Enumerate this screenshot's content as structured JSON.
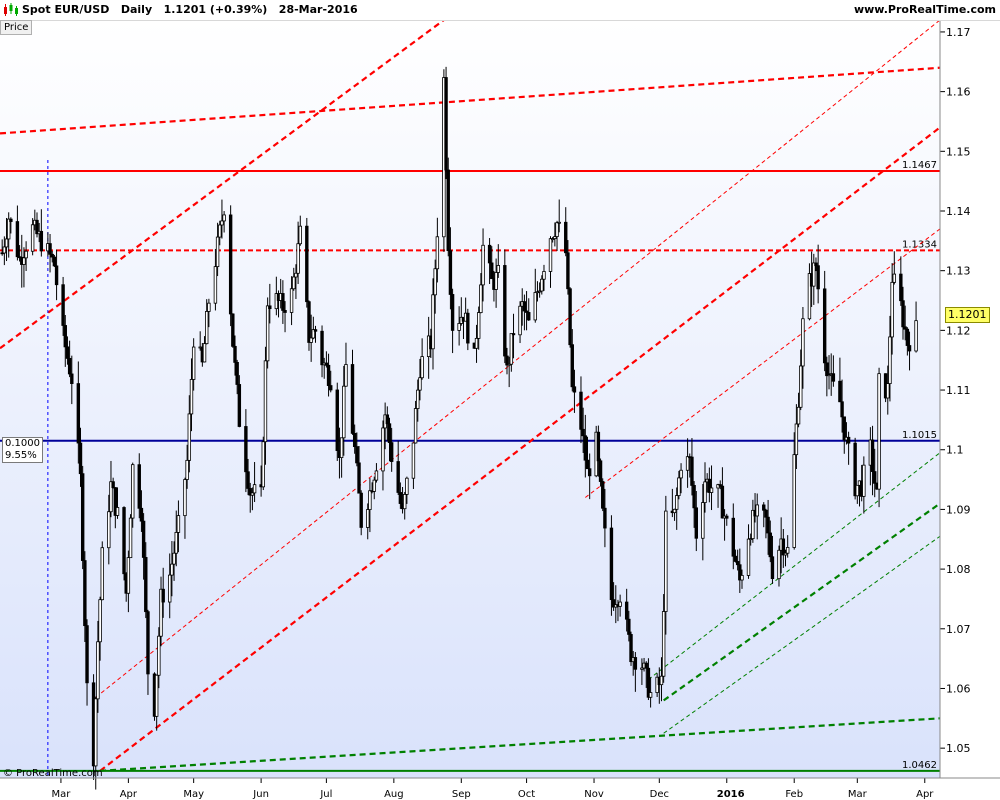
{
  "header": {
    "title": "Spot EUR/USD   Daily   1.1201 (+0.39%)   28-Mar-2016",
    "site": "www.ProRealTime.com",
    "price_tab": "Price"
  },
  "footer": {
    "copyright": "© ProRealTime.com"
  },
  "fib_box": {
    "level": "0.1000",
    "pct": "9.55%"
  },
  "last_price": "1.1201",
  "colors": {
    "background_top": "#ffffff",
    "background_bottom": "#d9e2fb",
    "resistance": "#ff0000",
    "support_blue": "#000099",
    "support_green": "#008000",
    "candle": "#000000"
  },
  "chart_data": {
    "type": "candlestick",
    "title": "Spot EUR/USD Daily",
    "ylim": [
      1.045,
      1.172
    ],
    "y_ticks": [
      1.05,
      1.06,
      1.07,
      1.08,
      1.09,
      1.1,
      1.11,
      1.12,
      1.13,
      1.14,
      1.15,
      1.16,
      1.17
    ],
    "y_tick_labels": [
      "1.05",
      "1.06",
      "1.07",
      "1.08",
      "1.09",
      "1.1",
      "1.11",
      "1.12",
      "1.13",
      "1.14",
      "1.15",
      "1.16",
      "1.17"
    ],
    "x_ticks": [
      {
        "label": "Mar",
        "date": "2015-03-01"
      },
      {
        "label": "Apr",
        "date": "2015-04-01"
      },
      {
        "label": "May",
        "date": "2015-05-01"
      },
      {
        "label": "Jun",
        "date": "2015-06-01"
      },
      {
        "label": "Jul",
        "date": "2015-07-01"
      },
      {
        "label": "Aug",
        "date": "2015-08-01"
      },
      {
        "label": "Sep",
        "date": "2015-09-01"
      },
      {
        "label": "Oct",
        "date": "2015-10-01"
      },
      {
        "label": "Nov",
        "date": "2015-11-01"
      },
      {
        "label": "Dec",
        "date": "2015-12-01"
      },
      {
        "label": "2016",
        "date": "2016-01-01",
        "bold": true
      },
      {
        "label": "Feb",
        "date": "2016-02-01"
      },
      {
        "label": "Mar",
        "date": "2016-03-01"
      },
      {
        "label": "Apr",
        "date": "2016-04-01"
      }
    ],
    "xlim": [
      "2015-02-01",
      "2016-04-08"
    ],
    "close_path": [
      [
        "2015-02-02",
        1.133
      ],
      [
        "2015-02-05",
        1.139
      ],
      [
        "2015-02-10",
        1.132
      ],
      [
        "2015-02-16",
        1.137
      ],
      [
        "2015-02-20",
        1.135
      ],
      [
        "2015-02-26",
        1.131
      ],
      [
        "2015-03-02",
        1.119
      ],
      [
        "2015-03-06",
        1.112
      ],
      [
        "2015-03-10",
        1.095
      ],
      [
        "2015-03-13",
        1.06
      ],
      [
        "2015-03-16",
        1.049
      ],
      [
        "2015-03-18",
        1.068
      ],
      [
        "2015-03-20",
        1.082
      ],
      [
        "2015-03-24",
        1.094
      ],
      [
        "2015-03-27",
        1.089
      ],
      [
        "2015-03-31",
        1.076
      ],
      [
        "2015-04-03",
        1.097
      ],
      [
        "2015-04-07",
        1.09
      ],
      [
        "2015-04-10",
        1.063
      ],
      [
        "2015-04-13",
        1.057
      ],
      [
        "2015-04-16",
        1.075
      ],
      [
        "2015-04-20",
        1.079
      ],
      [
        "2015-04-24",
        1.087
      ],
      [
        "2015-04-28",
        1.098
      ],
      [
        "2015-05-01",
        1.119
      ],
      [
        "2015-05-05",
        1.114
      ],
      [
        "2015-05-08",
        1.125
      ],
      [
        "2015-05-12",
        1.134
      ],
      [
        "2015-05-15",
        1.141
      ],
      [
        "2015-05-19",
        1.118
      ],
      [
        "2015-05-22",
        1.105
      ],
      [
        "2015-05-27",
        1.093
      ],
      [
        "2015-06-01",
        1.092
      ],
      [
        "2015-06-04",
        1.125
      ],
      [
        "2015-06-08",
        1.125
      ],
      [
        "2015-06-11",
        1.124
      ],
      [
        "2015-06-15",
        1.126
      ],
      [
        "2015-06-19",
        1.136
      ],
      [
        "2015-06-23",
        1.119
      ],
      [
        "2015-06-26",
        1.12
      ],
      [
        "2015-06-29",
        1.115
      ],
      [
        "2015-07-03",
        1.112
      ],
      [
        "2015-07-07",
        1.098
      ],
      [
        "2015-07-10",
        1.114
      ],
      [
        "2015-07-14",
        1.1
      ],
      [
        "2015-07-17",
        1.088
      ],
      [
        "2015-07-21",
        1.093
      ],
      [
        "2015-07-24",
        1.098
      ],
      [
        "2015-07-28",
        1.106
      ],
      [
        "2015-07-31",
        1.099
      ],
      [
        "2015-08-05",
        1.089
      ],
      [
        "2015-08-10",
        1.102
      ],
      [
        "2015-08-13",
        1.114
      ],
      [
        "2015-08-18",
        1.118
      ],
      [
        "2015-08-21",
        1.137
      ],
      [
        "2015-08-24",
        1.162
      ],
      [
        "2015-08-26",
        1.135
      ],
      [
        "2015-08-28",
        1.121
      ],
      [
        "2015-09-02",
        1.123
      ],
      [
        "2015-09-07",
        1.115
      ],
      [
        "2015-09-11",
        1.134
      ],
      [
        "2015-09-15",
        1.128
      ],
      [
        "2015-09-18",
        1.129
      ],
      [
        "2015-09-22",
        1.113
      ],
      [
        "2015-09-25",
        1.12
      ],
      [
        "2015-09-29",
        1.124
      ],
      [
        "2015-10-02",
        1.121
      ],
      [
        "2015-10-07",
        1.128
      ],
      [
        "2015-10-12",
        1.136
      ],
      [
        "2015-10-15",
        1.138
      ],
      [
        "2015-10-19",
        1.133
      ],
      [
        "2015-10-22",
        1.11
      ],
      [
        "2015-10-26",
        1.104
      ],
      [
        "2015-10-29",
        1.096
      ],
      [
        "2015-11-02",
        1.101
      ],
      [
        "2015-11-05",
        1.089
      ],
      [
        "2015-11-09",
        1.075
      ],
      [
        "2015-11-13",
        1.076
      ],
      [
        "2015-11-18",
        1.066
      ],
      [
        "2015-11-23",
        1.064
      ],
      [
        "2015-11-27",
        1.059
      ],
      [
        "2015-12-02",
        1.061
      ],
      [
        "2015-12-04",
        1.088
      ],
      [
        "2015-12-08",
        1.089
      ],
      [
        "2015-12-11",
        1.098
      ],
      [
        "2015-12-15",
        1.098
      ],
      [
        "2015-12-18",
        1.086
      ],
      [
        "2015-12-22",
        1.095
      ],
      [
        "2015-12-29",
        1.092
      ],
      [
        "2016-01-04",
        1.083
      ],
      [
        "2016-01-07",
        1.078
      ],
      [
        "2016-01-11",
        1.086
      ],
      [
        "2016-01-14",
        1.089
      ],
      [
        "2016-01-19",
        1.088
      ],
      [
        "2016-01-22",
        1.08
      ],
      [
        "2016-01-26",
        1.085
      ],
      [
        "2016-01-29",
        1.083
      ],
      [
        "2016-02-03",
        1.109
      ],
      [
        "2016-02-05",
        1.121
      ],
      [
        "2016-02-08",
        1.128
      ],
      [
        "2016-02-11",
        1.131
      ],
      [
        "2016-02-15",
        1.116
      ],
      [
        "2016-02-18",
        1.111
      ],
      [
        "2016-02-22",
        1.108
      ],
      [
        "2016-02-25",
        1.101
      ],
      [
        "2016-02-29",
        1.094
      ],
      [
        "2016-03-03",
        1.094
      ],
      [
        "2016-03-07",
        1.1
      ],
      [
        "2016-03-10",
        1.092
      ],
      [
        "2016-03-11",
        1.111
      ],
      [
        "2016-03-15",
        1.11
      ],
      [
        "2016-03-17",
        1.129
      ],
      [
        "2016-03-21",
        1.124
      ],
      [
        "2016-03-24",
        1.118
      ],
      [
        "2016-03-28",
        1.12
      ]
    ],
    "horizontal_lines": [
      {
        "value": 1.1467,
        "label": "1.1467",
        "color": "#ff0000",
        "style": "solid"
      },
      {
        "value": 1.1334,
        "label": "1.1334",
        "color": "#ff0000",
        "style": "dashed"
      },
      {
        "value": 1.1015,
        "label": "1.1015",
        "color": "#000099",
        "style": "solid"
      },
      {
        "value": 1.0462,
        "label": "1.0462",
        "color": "#008000",
        "style": "solid"
      }
    ],
    "trend_lines": [
      {
        "from": [
          "2015-02-01",
          1.153
        ],
        "to": [
          "2016-04-08",
          1.164
        ],
        "color": "#ff0000",
        "style": "dashed",
        "weight": "thick"
      },
      {
        "from": [
          "2015-02-01",
          1.117
        ],
        "to": [
          "2015-08-24",
          1.172
        ],
        "color": "#ff0000",
        "style": "dashed",
        "weight": "thick"
      },
      {
        "from": [
          "2015-03-17",
          1.0585
        ],
        "to": [
          "2016-04-08",
          1.172
        ],
        "color": "#ff0000",
        "style": "dashed",
        "weight": "thin"
      },
      {
        "from": [
          "2015-03-19",
          1.0462
        ],
        "to": [
          "2016-04-08",
          1.154
        ],
        "color": "#ff0000",
        "style": "dashed",
        "weight": "thick"
      },
      {
        "from": [
          "2015-10-28",
          1.092
        ],
        "to": [
          "2016-04-08",
          1.137
        ],
        "color": "#ff0000",
        "style": "dashed",
        "weight": "thin"
      },
      {
        "from": [
          "2015-03-19",
          1.0462
        ],
        "to": [
          "2016-04-08",
          1.055
        ],
        "color": "#008000",
        "style": "dashed",
        "weight": "thick"
      },
      {
        "from": [
          "2015-12-03",
          1.058
        ],
        "to": [
          "2016-04-08",
          1.091
        ],
        "color": "#008000",
        "style": "dashed",
        "weight": "thick"
      },
      {
        "from": [
          "2015-11-26",
          1.0615
        ],
        "to": [
          "2016-04-08",
          1.0995
        ],
        "color": "#008000",
        "style": "dashed",
        "weight": "thin"
      },
      {
        "from": [
          "2015-12-03",
          1.0525
        ],
        "to": [
          "2016-04-08",
          1.0855
        ],
        "color": "#008000",
        "style": "dashed",
        "weight": "thin"
      }
    ],
    "vertical_marker": {
      "date": "2015-02-23",
      "color": "#0000ff",
      "style": "dashed"
    },
    "grid": false,
    "legend": "none"
  }
}
